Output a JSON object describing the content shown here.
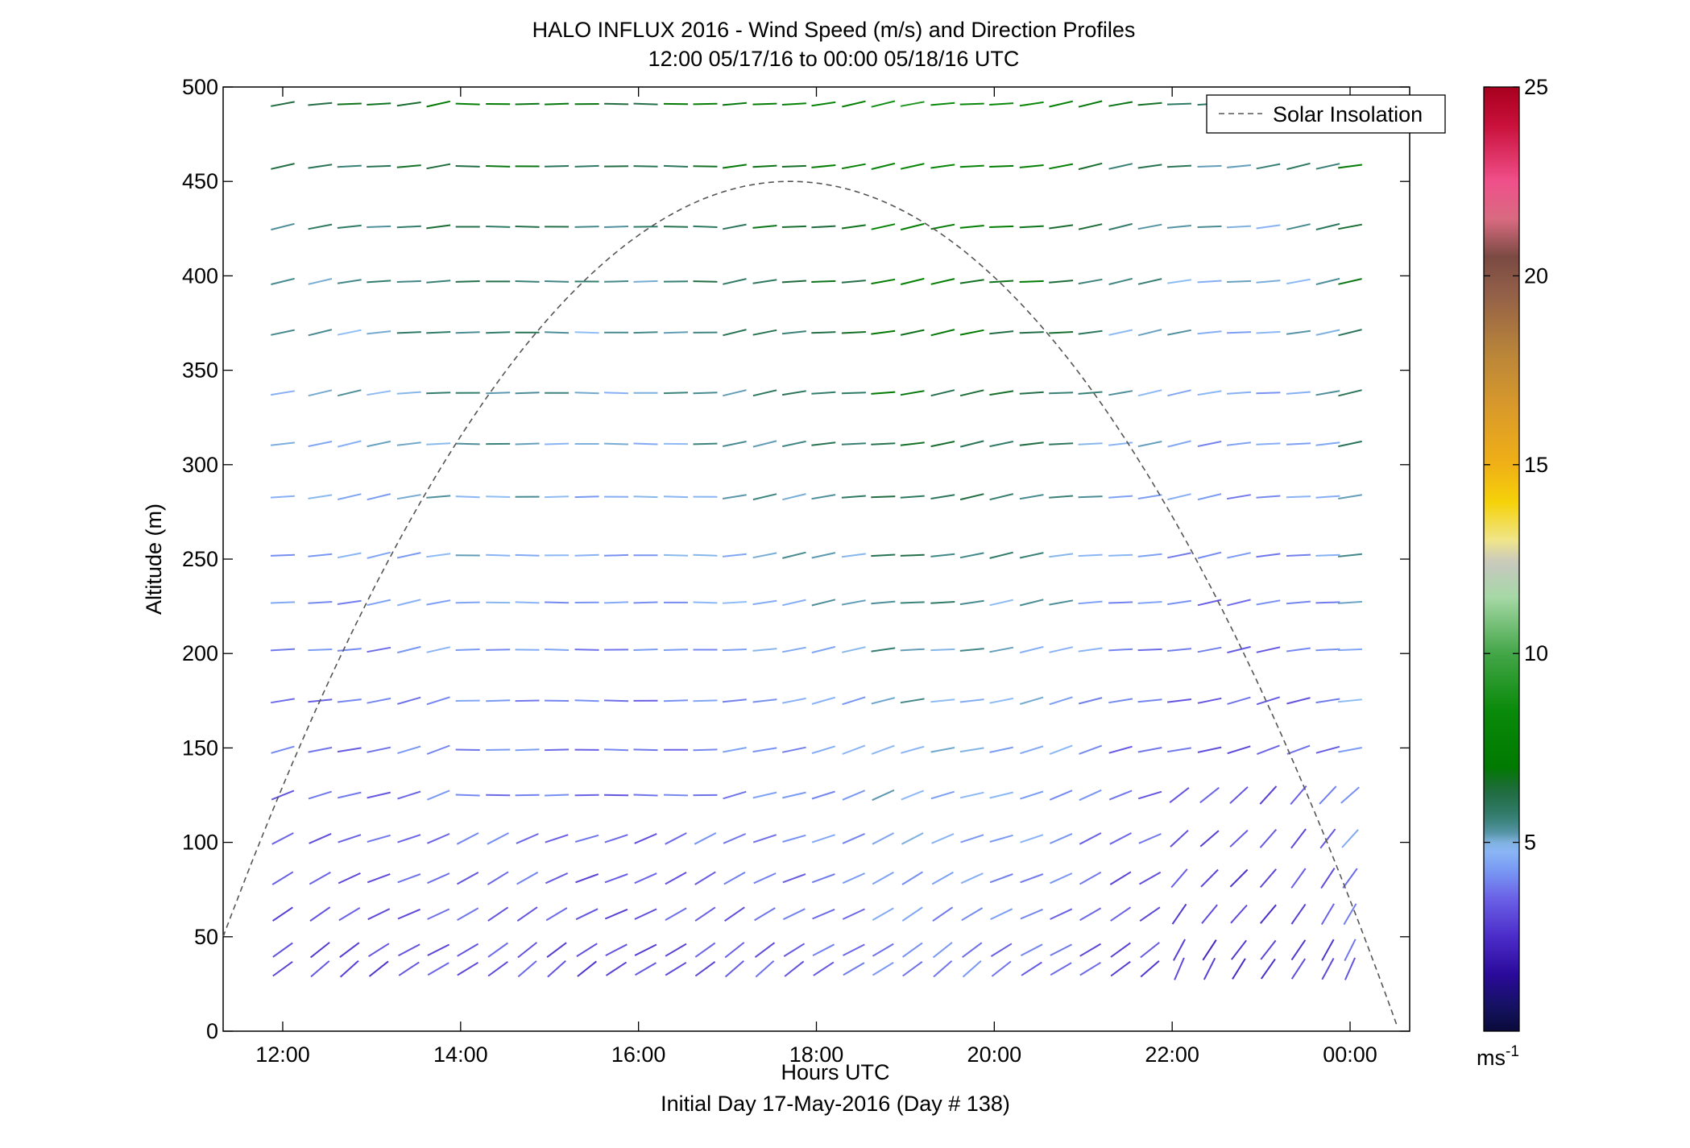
{
  "chart_data": {
    "type": "wind_barb_profile",
    "title": "HALO INFLUX 2016 - Wind Speed (m/s) and Direction Profiles",
    "subtitle": "12:00 05/17/16 to 00:00 05/18/16  UTC",
    "xlabel": "Hours UTC",
    "xlabel2": "Initial Day 17-May-2016 (Day # 138)",
    "ylabel": "Altitude (m)",
    "x_tick_labels": [
      "12:00",
      "14:00",
      "16:00",
      "18:00",
      "20:00",
      "22:00",
      "00:00"
    ],
    "x_ticks_hours": [
      12,
      14,
      16,
      18,
      20,
      22,
      24
    ],
    "y_ticks": [
      0,
      50,
      100,
      150,
      200,
      250,
      300,
      350,
      400,
      450,
      500
    ],
    "xlim_hours": [
      11.33,
      24.67
    ],
    "ylim": [
      0,
      500
    ],
    "legend": {
      "label": "Solar Insolation",
      "location": "top-right"
    },
    "colorbar": {
      "ticks": [
        5,
        10,
        15,
        20,
        25
      ],
      "range": [
        0,
        25
      ],
      "unit_base": "ms",
      "unit_exp": "-1"
    },
    "solar_insolation": {
      "peak_hour": 17.7,
      "peak_altitude": 450,
      "start_hour": 11.33,
      "start_altitude": 50,
      "end_hour": 24.55,
      "end_altitude": 0
    },
    "altitudes": [
      33,
      43,
      62,
      81,
      102,
      125,
      149,
      175,
      202,
      227,
      252,
      283,
      311,
      338,
      370,
      397,
      426,
      458,
      491
    ],
    "times": [
      12.0,
      12.42,
      12.75,
      13.08,
      13.42,
      13.75,
      14.08,
      14.42,
      14.75,
      15.08,
      15.42,
      15.75,
      16.08,
      16.42,
      16.75,
      17.08,
      17.42,
      17.75,
      18.08,
      18.42,
      18.75,
      19.08,
      19.42,
      19.75,
      20.08,
      20.42,
      20.75,
      21.08,
      21.42,
      21.75,
      22.08,
      22.42,
      22.75,
      23.08,
      23.42,
      23.75,
      24.0
    ],
    "speed_levels_ms": [
      3.0,
      3.0,
      3.2,
      3.3,
      3.5,
      3.6,
      3.7,
      3.8,
      4.0,
      4.2,
      4.4,
      4.6,
      4.8,
      5.0,
      5.2,
      5.4,
      5.6,
      6.0,
      6.5
    ],
    "speed_time_profile": [
      1.0,
      1.0,
      1.0,
      1.0,
      1.05,
      1.1,
      1.1,
      1.1,
      1.1,
      1.05,
      1.0,
      1.0,
      1.0,
      1.05,
      1.1,
      1.1,
      1.15,
      1.15,
      1.2,
      1.2,
      1.35,
      1.35,
      1.3,
      1.3,
      1.25,
      1.25,
      1.2,
      1.1,
      1.0,
      1.0,
      0.95,
      0.9,
      0.9,
      0.9,
      0.95,
      1.0,
      1.2
    ],
    "direction_note": "Wind vectors drawn as short line segments; tilt indicates direction, color indicates speed"
  }
}
